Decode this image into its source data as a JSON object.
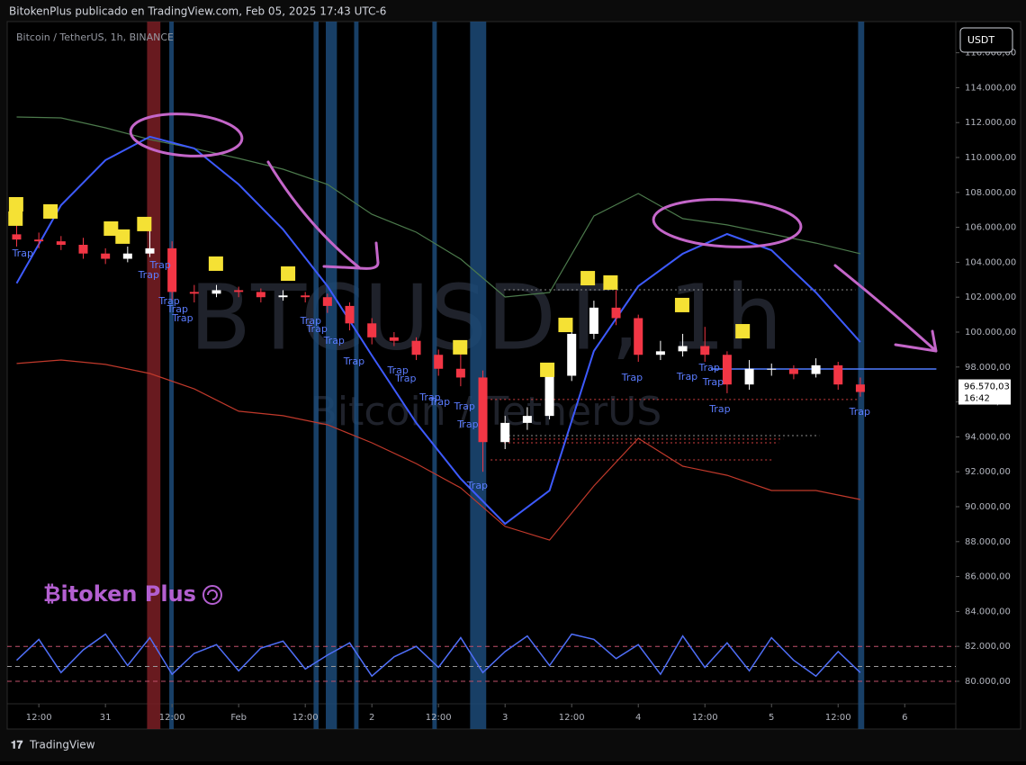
{
  "chart_data": {
    "type": "candlestick",
    "header": "BitokenPlus publicado en TradingView.com, Feb 05, 2025 17:43 UTC-6",
    "symbol": "Bitcoin / TetherUS, 1h, BINANCE",
    "currency_button": "USDT",
    "watermark": "BTCUSDT, 1h",
    "watermark_sub": "Bitcoin / TetherUS",
    "brand": "₿itoken Plus",
    "footer": "TradingView",
    "xlim": [
      -17.7,
      153.2
    ],
    "ylim": [
      77268,
      117784
    ],
    "xticks": [
      {
        "value": -12,
        "label": "12:00"
      },
      {
        "value": 0,
        "label": "31"
      },
      {
        "value": 12,
        "label": "12:00"
      },
      {
        "value": 24,
        "label": "Feb"
      },
      {
        "value": 36,
        "label": "12:00"
      },
      {
        "value": 48,
        "label": "2"
      },
      {
        "value": 60,
        "label": "12:00"
      },
      {
        "value": 72,
        "label": "3"
      },
      {
        "value": 84,
        "label": "12:00"
      },
      {
        "value": 96,
        "label": "4"
      },
      {
        "value": 108,
        "label": "12:00"
      },
      {
        "value": 120,
        "label": "5"
      },
      {
        "value": 132,
        "label": "12:00"
      },
      {
        "value": 144,
        "label": "6"
      }
    ],
    "yticks": [
      {
        "value": 80000,
        "label": "80.000,00"
      },
      {
        "value": 82000,
        "label": "82.000,00"
      },
      {
        "value": 84000,
        "label": "84.000,00"
      },
      {
        "value": 86000,
        "label": "86.000,00"
      },
      {
        "value": 88000,
        "label": "88.000,00"
      },
      {
        "value": 90000,
        "label": "90.000,00"
      },
      {
        "value": 92000,
        "label": "92.000,00"
      },
      {
        "value": 94000,
        "label": "94.000,00"
      },
      {
        "value": 96000,
        "label": "96.000,00"
      },
      {
        "value": 98000,
        "label": "98.000,00"
      },
      {
        "value": 100000,
        "label": "100.000,00"
      },
      {
        "value": 102000,
        "label": "102.000,00"
      },
      {
        "value": 104000,
        "label": "104.000,00"
      },
      {
        "value": 106000,
        "label": "106.000,00"
      },
      {
        "value": 108000,
        "label": "108.000,00"
      },
      {
        "value": 110000,
        "label": "110.000,00"
      },
      {
        "value": 112000,
        "label": "112.000,00"
      },
      {
        "value": 114000,
        "label": "114.000,00"
      },
      {
        "value": 116000,
        "label": "116.000,00"
      }
    ],
    "candles": {
      "up_color": "#ffffff",
      "down_color": "#f23645",
      "x": [
        -16,
        -12,
        -8,
        -4,
        0,
        4,
        8,
        12,
        16,
        20,
        24,
        28,
        32,
        36,
        40,
        44,
        48,
        52,
        56,
        60,
        64,
        68,
        72,
        76,
        80,
        84,
        88,
        92,
        96,
        100,
        104,
        108,
        112,
        116,
        120,
        124,
        128,
        132,
        136
      ],
      "open": [
        105600,
        105300,
        105200,
        105000,
        104500,
        104200,
        104500,
        104800,
        102300,
        102200,
        102400,
        102300,
        102000,
        102100,
        102000,
        101500,
        100500,
        99700,
        99500,
        98700,
        97900,
        97400,
        93700,
        94800,
        95200,
        97500,
        99900,
        101400,
        100800,
        98700,
        98900,
        99200,
        98700,
        97000,
        97900,
        97900,
        97600,
        98100,
        97000
      ],
      "high": [
        106200,
        105700,
        105500,
        105400,
        104800,
        104900,
        106000,
        105200,
        102700,
        102700,
        102600,
        102500,
        102400,
        102300,
        102200,
        101700,
        100800,
        100000,
        99700,
        99000,
        98800,
        97800,
        95200,
        95700,
        97700,
        100300,
        101800,
        102400,
        101000,
        99500,
        99900,
        100300,
        98900,
        98400,
        98200,
        98100,
        98500,
        98300,
        97400
      ],
      "low": [
        104900,
        104800,
        104700,
        104200,
        103900,
        104000,
        104300,
        101800,
        101700,
        102000,
        102000,
        101700,
        101800,
        101700,
        101100,
        100100,
        99300,
        99200,
        98400,
        97500,
        96900,
        92000,
        93300,
        94400,
        95000,
        97200,
        99600,
        100400,
        98300,
        98400,
        98600,
        98300,
        96500,
        96700,
        97500,
        97300,
        97400,
        96700,
        96300
      ],
      "close": [
        105300,
        105200,
        105000,
        104500,
        104200,
        104500,
        104800,
        102300,
        102200,
        102400,
        102300,
        102000,
        102100,
        102000,
        101500,
        100500,
        99700,
        99500,
        98700,
        97900,
        97400,
        93700,
        94800,
        95200,
        97500,
        99900,
        101400,
        100800,
        98700,
        98900,
        99200,
        98700,
        97000,
        97900,
        97900,
        97600,
        98100,
        97000,
        96570.03
      ]
    },
    "last_price": {
      "value": 96570.03,
      "label": "96.570,03"
    },
    "countdown": "16:42",
    "overlay_x": [
      -16,
      -8,
      0,
      8,
      16,
      24,
      32,
      40,
      48,
      56,
      64,
      72,
      80,
      88,
      96,
      104,
      112,
      120,
      128,
      136
    ],
    "overlays": [
      {
        "color": "#4c7a4c",
        "values": [
          112320,
          112270,
          111700,
          111030,
          110520,
          109950,
          109330,
          108460,
          106750,
          105720,
          104180,
          102010,
          102270,
          106650,
          107940,
          106500,
          106140,
          105620,
          105100,
          104490
        ]
      },
      {
        "color": "#c0392b",
        "values": [
          98200,
          98400,
          98150,
          97630,
          96750,
          95470,
          95210,
          94690,
          93660,
          92470,
          91080,
          88870,
          88090,
          91190,
          93920,
          92320,
          91800,
          90930,
          90930,
          90410
        ]
      },
      {
        "color": "#3d5afe",
        "values": [
          102800,
          107270,
          109850,
          111190,
          110520,
          108460,
          105880,
          102630,
          98660,
          94800,
          91600,
          89020,
          90930,
          98920,
          102630,
          104490,
          105620,
          104690,
          102270,
          99430
        ]
      }
    ],
    "oscillator": {
      "color": "#4f6ef7",
      "values": [
        81200,
        82400,
        80500,
        81800,
        82700,
        80900,
        82500,
        80400,
        81600,
        82100,
        80600,
        81900,
        82300,
        80700,
        81500,
        82200,
        80300,
        81400,
        82000,
        80800,
        82500,
        80500,
        81700,
        82600,
        80900,
        82700,
        82400,
        81300,
        82100,
        80400,
        82600,
        80800,
        82200,
        80600,
        82500,
        81200,
        80300,
        81700,
        80500
      ]
    },
    "oscillator_levels": [
      {
        "value": 82000,
        "color": "#c0506a"
      },
      {
        "value": 80850,
        "color": "#9a9a9a"
      },
      {
        "value": 80000,
        "color": "#c0506a"
      }
    ],
    "highlights": [
      {
        "start": 7.5,
        "end": 9.9,
        "color": "#7a1f24"
      },
      {
        "start": 11.5,
        "end": 12.3,
        "color": "#1c4a78"
      },
      {
        "start": 37.5,
        "end": 38.4,
        "color": "#1c4a78"
      },
      {
        "start": 39.7,
        "end": 41.7,
        "color": "#1c4a78"
      },
      {
        "start": 44.8,
        "end": 45.6,
        "color": "#1c4a78"
      },
      {
        "start": 58.9,
        "end": 59.7,
        "color": "#1c4a78"
      },
      {
        "start": 65.7,
        "end": 68.6,
        "color": "#1c4a78"
      },
      {
        "start": 135.6,
        "end": 136.7,
        "color": "#1c4a78"
      }
    ],
    "levels": [
      {
        "value": 102420,
        "from": 71.8,
        "to": 135.1,
        "color": "#8a8a8a"
      },
      {
        "value": 96140,
        "from": 69.4,
        "to": 135.9,
        "color": "#d04040"
      },
      {
        "value": 94070,
        "from": 71.8,
        "to": 128.6,
        "color": "#8a8a8a"
      },
      {
        "value": 93870,
        "from": 71.8,
        "to": 122.1,
        "color": "#d04040"
      },
      {
        "value": 93660,
        "from": 71.8,
        "to": 121.3,
        "color": "#d04040"
      },
      {
        "value": 92680,
        "from": 69.4,
        "to": 120.0,
        "color": "#d04040"
      },
      {
        "value": 97890,
        "from": 109.1,
        "to": 149.7,
        "color": "#4f7cff"
      }
    ],
    "signal_color": "#f5e134",
    "signals": [
      {
        "x": -16.1,
        "y": 107320
      },
      {
        "x": -16.2,
        "y": 106500
      },
      {
        "x": -9.9,
        "y": 106910
      },
      {
        "x": 1.0,
        "y": 105930
      },
      {
        "x": 3.1,
        "y": 105470
      },
      {
        "x": 7.0,
        "y": 106190
      },
      {
        "x": 19.9,
        "y": 103920
      },
      {
        "x": 32.9,
        "y": 103350
      },
      {
        "x": 63.9,
        "y": 99130
      },
      {
        "x": 79.6,
        "y": 97840
      },
      {
        "x": 82.9,
        "y": 100410
      },
      {
        "x": 86.9,
        "y": 103090
      },
      {
        "x": 91.0,
        "y": 102840
      },
      {
        "x": 103.9,
        "y": 101550
      },
      {
        "x": 114.8,
        "y": 100050
      }
    ],
    "traps": [
      {
        "text": "Trap",
        "x": -14.9,
        "y": 104490
      },
      {
        "text": "Trap",
        "x": 9.9,
        "y": 103820
      },
      {
        "text": "Trap",
        "x": 7.8,
        "y": 103250
      },
      {
        "text": "Trap",
        "x": 11.5,
        "y": 101750
      },
      {
        "text": "Trap",
        "x": 13.0,
        "y": 101290
      },
      {
        "text": "Trap",
        "x": 13.9,
        "y": 100770
      },
      {
        "text": "Trap",
        "x": 37.0,
        "y": 100620
      },
      {
        "text": "Trap",
        "x": 38.1,
        "y": 100160
      },
      {
        "text": "Trap",
        "x": 41.2,
        "y": 99490
      },
      {
        "text": "Trap",
        "x": 44.8,
        "y": 98300
      },
      {
        "text": "Trap",
        "x": 52.7,
        "y": 97790
      },
      {
        "text": "Trap",
        "x": 54.1,
        "y": 97320
      },
      {
        "text": "Trap",
        "x": 58.5,
        "y": 96240
      },
      {
        "text": "Trap",
        "x": 60.2,
        "y": 95980
      },
      {
        "text": "Trap",
        "x": 64.7,
        "y": 95720
      },
      {
        "text": "Trap",
        "x": 65.3,
        "y": 94690
      },
      {
        "text": "Trap",
        "x": 67.0,
        "y": 91190
      },
      {
        "text": "Trap",
        "x": 94.9,
        "y": 97370
      },
      {
        "text": "Trap",
        "x": 104.8,
        "y": 97420
      },
      {
        "text": "Trap",
        "x": 108.8,
        "y": 97940
      },
      {
        "text": "Trap",
        "x": 109.5,
        "y": 97110
      },
      {
        "text": "Trap",
        "x": 110.7,
        "y": 95570
      },
      {
        "text": "Trap",
        "x": 135.9,
        "y": 95410
      }
    ]
  }
}
